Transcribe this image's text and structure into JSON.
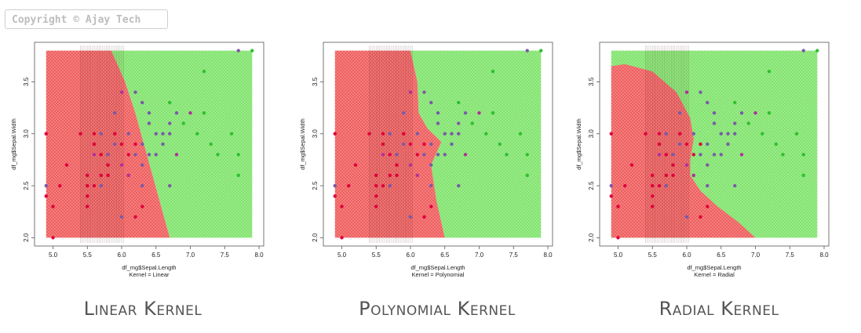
{
  "copyright": "Copyright © Ajay Tech",
  "colors": {
    "red": "#ef5a5a",
    "green": "#7ee36a",
    "class_red": "#e0003a",
    "class_magenta": "#b0309a",
    "class_purple": "#7b5aa8",
    "class_green": "#2fbf2f"
  },
  "chart_data": [
    {
      "type": "scatter",
      "kernel": "Linear",
      "caption": "Linear Kernel",
      "xlabel": "df_mg$Sepal.Length",
      "sublabel": "Kernel = Linear",
      "ylabel": "df_mg$Sepal.Width",
      "xlim": [
        4.8,
        8.0
      ],
      "ylim": [
        1.95,
        3.85
      ],
      "xticks": [
        "5.0",
        "5.5",
        "6.0",
        "6.5",
        "7.0",
        "7.5",
        "8.0"
      ],
      "yticks": [
        "2.0",
        "2.5",
        "3.0",
        "3.5"
      ],
      "regions": [
        {
          "fill": "#ef5a5a",
          "points": [
            [
              4.9,
              2.0
            ],
            [
              6.7,
              2.0
            ],
            [
              6.45,
              2.6
            ],
            [
              6.2,
              3.2
            ],
            [
              6.05,
              3.5
            ],
            [
              5.85,
              3.8
            ],
            [
              4.9,
              3.8
            ]
          ]
        },
        {
          "fill": "#7ee36a",
          "points": [
            [
              6.7,
              2.0
            ],
            [
              7.9,
              2.0
            ],
            [
              7.9,
              3.8
            ],
            [
              5.85,
              3.8
            ],
            [
              6.05,
              3.5
            ],
            [
              6.2,
              3.2
            ],
            [
              6.45,
              2.6
            ]
          ]
        }
      ]
    },
    {
      "type": "scatter",
      "kernel": "Polynomial",
      "caption": "Polynomial Kernel",
      "xlabel": "df_mg$Sepal.Length",
      "sublabel": "Kernel = Polynomial",
      "ylabel": "df_mg$Sepal.Width",
      "xlim": [
        4.8,
        8.0
      ],
      "ylim": [
        1.95,
        3.85
      ],
      "xticks": [
        "5.0",
        "5.5",
        "6.0",
        "6.5",
        "7.0",
        "7.5",
        "8.0"
      ],
      "yticks": [
        "2.0",
        "2.5",
        "3.0",
        "3.5"
      ],
      "regions": [
        {
          "fill": "#ef5a5a",
          "points": [
            [
              4.9,
              2.0
            ],
            [
              6.5,
              2.0
            ],
            [
              6.38,
              2.35
            ],
            [
              6.3,
              2.7
            ],
            [
              6.45,
              2.92
            ],
            [
              6.25,
              3.05
            ],
            [
              6.12,
              3.2
            ],
            [
              6.1,
              3.5
            ],
            [
              6.0,
              3.8
            ],
            [
              4.9,
              3.8
            ]
          ]
        },
        {
          "fill": "#7ee36a",
          "points": [
            [
              6.5,
              2.0
            ],
            [
              7.9,
              2.0
            ],
            [
              7.9,
              3.8
            ],
            [
              6.0,
              3.8
            ],
            [
              6.1,
              3.5
            ],
            [
              6.12,
              3.2
            ],
            [
              6.25,
              3.05
            ],
            [
              6.45,
              2.92
            ],
            [
              6.3,
              2.7
            ],
            [
              6.38,
              2.35
            ]
          ]
        }
      ]
    },
    {
      "type": "scatter",
      "kernel": "Radial",
      "caption": "Radial Kernel",
      "xlabel": "df_mg$Sepal.Length",
      "sublabel": "Kernel = Radial",
      "ylabel": "df_mg$Sepal.Width",
      "xlim": [
        4.8,
        8.0
      ],
      "ylim": [
        1.95,
        3.85
      ],
      "xticks": [
        "5.0",
        "5.5",
        "6.0",
        "6.5",
        "7.0",
        "7.5",
        "8.0"
      ],
      "yticks": [
        "2.0",
        "2.5",
        "3.0",
        "3.5"
      ],
      "regions": [
        {
          "fill": "#7ee36a",
          "points": [
            [
              4.9,
              2.0
            ],
            [
              7.9,
              2.0
            ],
            [
              7.9,
              3.8
            ],
            [
              4.9,
              3.8
            ]
          ]
        },
        {
          "fill": "#ef5a5a",
          "points": [
            [
              4.9,
              2.0
            ],
            [
              7.0,
              2.0
            ],
            [
              6.75,
              2.15
            ],
            [
              6.45,
              2.3
            ],
            [
              6.2,
              2.45
            ],
            [
              6.05,
              2.6
            ],
            [
              6.05,
              2.75
            ],
            [
              6.1,
              2.95
            ],
            [
              6.05,
              3.15
            ],
            [
              5.85,
              3.4
            ],
            [
              5.5,
              3.6
            ],
            [
              5.1,
              3.67
            ],
            [
              4.9,
              3.65
            ]
          ]
        }
      ]
    }
  ],
  "points": [
    {
      "x": 4.9,
      "y": 3.0,
      "c": "class_red"
    },
    {
      "x": 4.9,
      "y": 2.4,
      "c": "class_red"
    },
    {
      "x": 4.9,
      "y": 2.5,
      "c": "class_purple"
    },
    {
      "x": 5.0,
      "y": 2.0,
      "c": "class_red"
    },
    {
      "x": 5.0,
      "y": 2.3,
      "c": "class_red"
    },
    {
      "x": 5.1,
      "y": 2.5,
      "c": "class_red"
    },
    {
      "x": 5.2,
      "y": 2.7,
      "c": "class_red"
    },
    {
      "x": 5.4,
      "y": 3.0,
      "c": "class_red"
    },
    {
      "x": 5.5,
      "y": 2.4,
      "c": "class_red"
    },
    {
      "x": 5.5,
      "y": 2.5,
      "c": "class_red"
    },
    {
      "x": 5.5,
      "y": 2.3,
      "c": "class_red"
    },
    {
      "x": 5.5,
      "y": 2.6,
      "c": "class_red"
    },
    {
      "x": 5.6,
      "y": 3.0,
      "c": "class_red"
    },
    {
      "x": 5.6,
      "y": 2.9,
      "c": "class_red"
    },
    {
      "x": 5.6,
      "y": 2.8,
      "c": "class_magenta"
    },
    {
      "x": 5.6,
      "y": 2.5,
      "c": "class_red"
    },
    {
      "x": 5.7,
      "y": 2.8,
      "c": "class_red"
    },
    {
      "x": 5.7,
      "y": 2.6,
      "c": "class_red"
    },
    {
      "x": 5.7,
      "y": 3.0,
      "c": "class_purple"
    },
    {
      "x": 5.7,
      "y": 2.5,
      "c": "class_purple"
    },
    {
      "x": 5.8,
      "y": 2.7,
      "c": "class_red"
    },
    {
      "x": 5.8,
      "y": 2.6,
      "c": "class_red"
    },
    {
      "x": 5.9,
      "y": 3.0,
      "c": "class_red"
    },
    {
      "x": 5.9,
      "y": 3.2,
      "c": "class_purple"
    },
    {
      "x": 6.0,
      "y": 2.2,
      "c": "class_purple"
    },
    {
      "x": 6.0,
      "y": 2.7,
      "c": "class_magenta"
    },
    {
      "x": 6.0,
      "y": 3.4,
      "c": "class_magenta"
    },
    {
      "x": 6.0,
      "y": 2.9,
      "c": "class_red"
    },
    {
      "x": 6.1,
      "y": 2.8,
      "c": "class_red"
    },
    {
      "x": 6.1,
      "y": 3.0,
      "c": "class_purple"
    },
    {
      "x": 6.1,
      "y": 2.6,
      "c": "class_magenta"
    },
    {
      "x": 6.2,
      "y": 2.2,
      "c": "class_red"
    },
    {
      "x": 6.2,
      "y": 2.9,
      "c": "class_red"
    },
    {
      "x": 6.2,
      "y": 2.8,
      "c": "class_purple"
    },
    {
      "x": 6.2,
      "y": 3.4,
      "c": "class_purple"
    },
    {
      "x": 6.3,
      "y": 2.5,
      "c": "class_purple"
    },
    {
      "x": 6.3,
      "y": 2.9,
      "c": "class_purple"
    },
    {
      "x": 6.3,
      "y": 3.3,
      "c": "class_purple"
    },
    {
      "x": 6.3,
      "y": 2.7,
      "c": "class_purple"
    },
    {
      "x": 6.3,
      "y": 2.3,
      "c": "class_red"
    },
    {
      "x": 6.4,
      "y": 3.2,
      "c": "class_purple"
    },
    {
      "x": 6.4,
      "y": 2.8,
      "c": "class_purple"
    },
    {
      "x": 6.4,
      "y": 3.1,
      "c": "class_purple"
    },
    {
      "x": 6.5,
      "y": 3.0,
      "c": "class_purple"
    },
    {
      "x": 6.5,
      "y": 2.8,
      "c": "class_purple"
    },
    {
      "x": 6.6,
      "y": 2.9,
      "c": "class_purple"
    },
    {
      "x": 6.6,
      "y": 3.0,
      "c": "class_purple"
    },
    {
      "x": 6.7,
      "y": 3.1,
      "c": "class_purple"
    },
    {
      "x": 6.7,
      "y": 3.0,
      "c": "class_purple"
    },
    {
      "x": 6.7,
      "y": 2.5,
      "c": "class_purple"
    },
    {
      "x": 6.7,
      "y": 3.3,
      "c": "class_green"
    },
    {
      "x": 6.8,
      "y": 2.8,
      "c": "class_magenta"
    },
    {
      "x": 6.8,
      "y": 3.2,
      "c": "class_purple"
    },
    {
      "x": 6.9,
      "y": 3.1,
      "c": "class_green"
    },
    {
      "x": 7.0,
      "y": 3.2,
      "c": "class_magenta"
    },
    {
      "x": 7.1,
      "y": 3.0,
      "c": "class_green"
    },
    {
      "x": 7.2,
      "y": 3.2,
      "c": "class_green"
    },
    {
      "x": 7.2,
      "y": 3.6,
      "c": "class_green"
    },
    {
      "x": 7.3,
      "y": 2.9,
      "c": "class_green"
    },
    {
      "x": 7.4,
      "y": 2.8,
      "c": "class_green"
    },
    {
      "x": 7.6,
      "y": 3.0,
      "c": "class_green"
    },
    {
      "x": 7.7,
      "y": 2.6,
      "c": "class_green"
    },
    {
      "x": 7.7,
      "y": 3.8,
      "c": "class_purple"
    },
    {
      "x": 7.7,
      "y": 2.8,
      "c": "class_green"
    },
    {
      "x": 7.9,
      "y": 3.8,
      "c": "class_green"
    },
    {
      "x": 5.8,
      "y": 2.8,
      "c": "class_purple"
    },
    {
      "x": 5.9,
      "y": 2.9,
      "c": "class_purple"
    }
  ]
}
